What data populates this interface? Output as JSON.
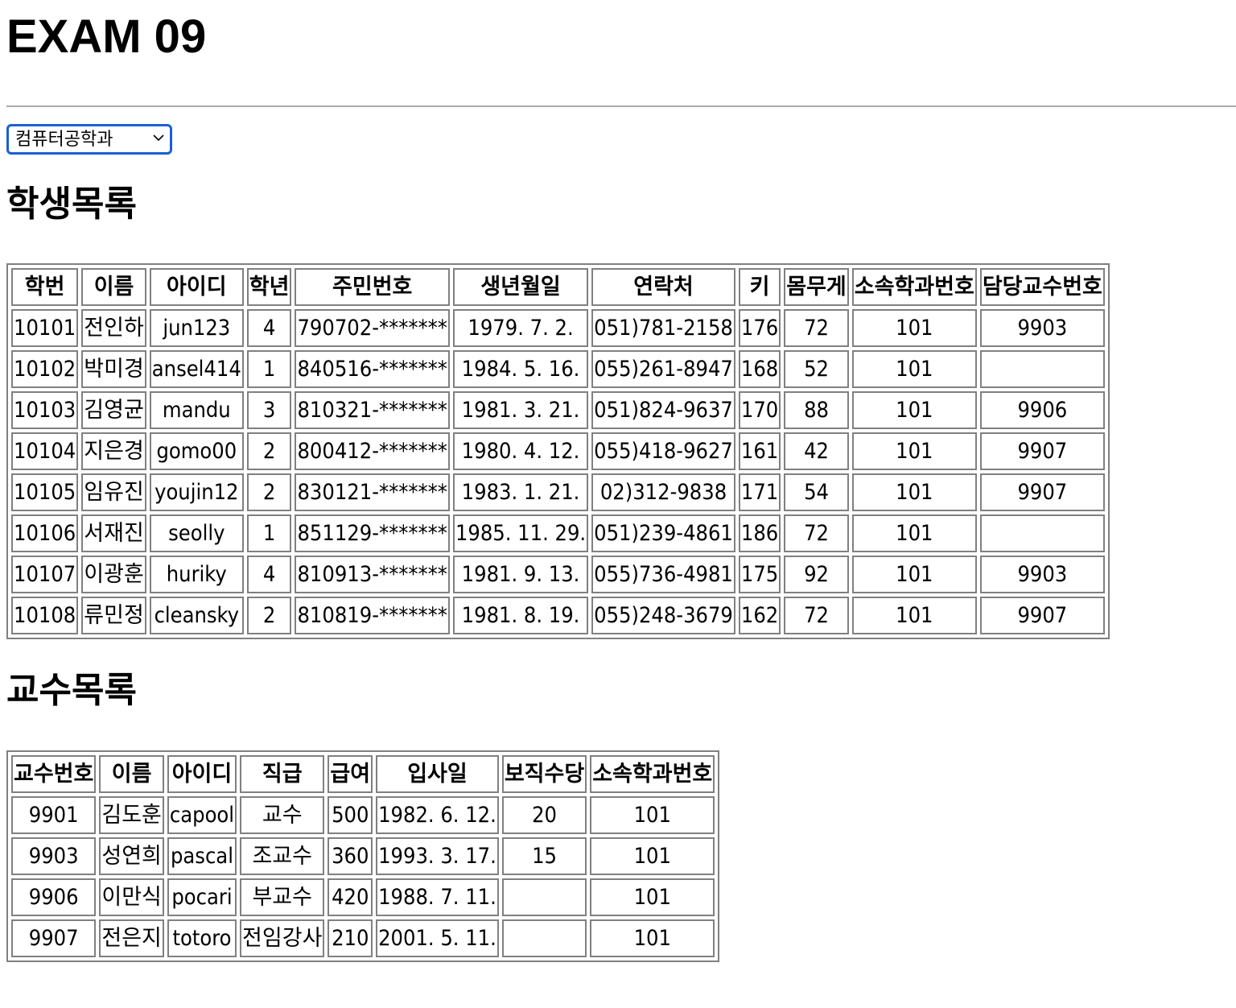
{
  "page": {
    "title": "EXAM 09"
  },
  "department_select": {
    "selected": "컴퓨터공학과"
  },
  "students": {
    "heading": "학생목록",
    "columns": [
      "학번",
      "이름",
      "아이디",
      "학년",
      "주민번호",
      "생년월일",
      "연락처",
      "키",
      "몸무게",
      "소속학과번호",
      "담당교수번호"
    ],
    "rows": [
      [
        "10101",
        "전인하",
        "jun123",
        "4",
        "790702-*******",
        "1979. 7. 2.",
        "051)781-2158",
        "176",
        "72",
        "101",
        "9903"
      ],
      [
        "10102",
        "박미경",
        "ansel414",
        "1",
        "840516-*******",
        "1984. 5. 16.",
        "055)261-8947",
        "168",
        "52",
        "101",
        ""
      ],
      [
        "10103",
        "김영균",
        "mandu",
        "3",
        "810321-*******",
        "1981. 3. 21.",
        "051)824-9637",
        "170",
        "88",
        "101",
        "9906"
      ],
      [
        "10104",
        "지은경",
        "gomo00",
        "2",
        "800412-*******",
        "1980. 4. 12.",
        "055)418-9627",
        "161",
        "42",
        "101",
        "9907"
      ],
      [
        "10105",
        "임유진",
        "youjin12",
        "2",
        "830121-*******",
        "1983. 1. 21.",
        "02)312-9838",
        "171",
        "54",
        "101",
        "9907"
      ],
      [
        "10106",
        "서재진",
        "seolly",
        "1",
        "851129-*******",
        "1985. 11. 29.",
        "051)239-4861",
        "186",
        "72",
        "101",
        ""
      ],
      [
        "10107",
        "이광훈",
        "huriky",
        "4",
        "810913-*******",
        "1981. 9. 13.",
        "055)736-4981",
        "175",
        "92",
        "101",
        "9903"
      ],
      [
        "10108",
        "류민정",
        "cleansky",
        "2",
        "810819-*******",
        "1981. 8. 19.",
        "055)248-3679",
        "162",
        "72",
        "101",
        "9907"
      ]
    ]
  },
  "professors": {
    "heading": "교수목록",
    "columns": [
      "교수번호",
      "이름",
      "아이디",
      "직급",
      "급여",
      "입사일",
      "보직수당",
      "소속학과번호"
    ],
    "rows": [
      [
        "9901",
        "김도훈",
        "capool",
        "교수",
        "500",
        "1982. 6. 12.",
        "20",
        "101"
      ],
      [
        "9903",
        "성연희",
        "pascal",
        "조교수",
        "360",
        "1993. 3. 17.",
        "15",
        "101"
      ],
      [
        "9906",
        "이만식",
        "pocari",
        "부교수",
        "420",
        "1988. 7. 11.",
        "",
        "101"
      ],
      [
        "9907",
        "전은지",
        "totoro",
        "전임강사",
        "210",
        "2001. 5. 11.",
        "",
        "101"
      ]
    ]
  }
}
